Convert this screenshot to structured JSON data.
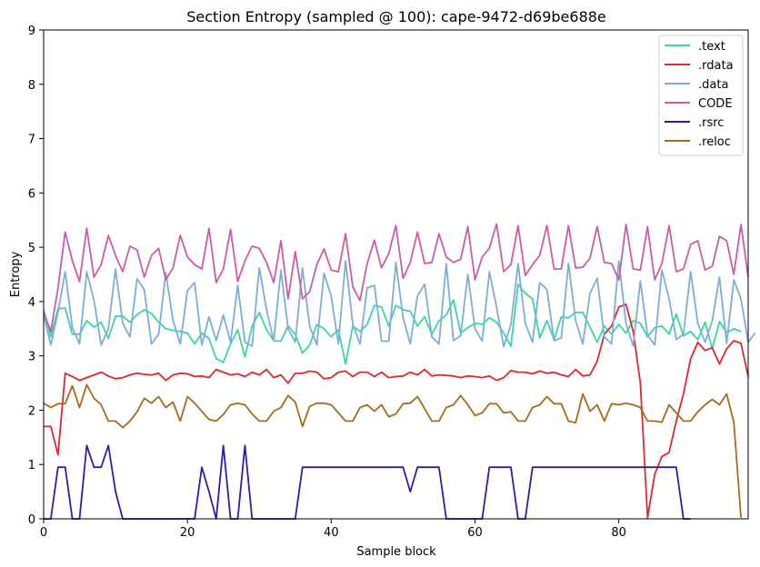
{
  "chart_data": {
    "type": "line",
    "title": "Section Entropy (sampled @ 100): cape-9472-d69be688e",
    "xlabel": "Sample block",
    "ylabel": "Entropy",
    "xlim": [
      0,
      98
    ],
    "ylim": [
      0,
      9
    ],
    "xticks": [
      0,
      20,
      40,
      60,
      80
    ],
    "yticks": [
      0,
      1,
      2,
      3,
      4,
      5,
      6,
      7,
      8,
      9
    ],
    "grid": false,
    "legend_position": "top-right",
    "series": [
      {
        "name": ".text",
        "color": "#3ad6a0",
        "values": [
          3.85,
          3.35,
          3.87,
          3.88,
          3.4,
          3.4,
          3.65,
          3.53,
          3.62,
          3.32,
          3.73,
          3.73,
          3.62,
          3.76,
          3.85,
          3.78,
          3.62,
          3.5,
          3.47,
          3.45,
          3.42,
          3.22,
          3.42,
          3.32,
          2.95,
          2.88,
          3.22,
          3.48,
          2.98,
          3.55,
          3.8,
          3.48,
          3.28,
          3.27,
          3.55,
          3.4,
          3.05,
          3.2,
          3.58,
          3.5,
          3.35,
          3.48,
          2.85,
          3.55,
          3.45,
          3.58,
          3.93,
          3.9,
          3.55,
          3.93,
          3.85,
          3.82,
          3.55,
          3.72,
          3.4,
          3.65,
          3.75,
          4.03,
          3.42,
          3.52,
          3.6,
          3.58,
          3.7,
          3.62,
          3.42,
          3.18,
          4.32,
          4.15,
          4.05,
          3.33,
          3.65,
          3.3,
          3.72,
          3.7,
          3.8,
          3.8,
          3.53,
          3.25,
          3.55,
          3.4,
          3.58,
          3.42,
          3.65,
          3.6,
          3.35,
          3.52,
          3.55,
          3.4,
          3.77,
          3.37,
          3.45,
          3.3,
          3.62,
          3.13,
          3.63,
          3.43,
          3.5,
          3.45
        ]
      },
      {
        "name": ".rdata",
        "color": "#e0282c",
        "values": [
          1.7,
          1.7,
          1.18,
          2.68,
          2.62,
          2.55,
          2.6,
          2.65,
          2.7,
          2.63,
          2.58,
          2.6,
          2.65,
          2.68,
          2.66,
          2.65,
          2.68,
          2.55,
          2.65,
          2.68,
          2.67,
          2.62,
          2.63,
          2.6,
          2.75,
          2.7,
          2.65,
          2.67,
          2.62,
          2.7,
          2.65,
          2.75,
          2.6,
          2.65,
          2.5,
          2.68,
          2.68,
          2.72,
          2.7,
          2.58,
          2.6,
          2.7,
          2.72,
          2.62,
          2.7,
          2.7,
          2.62,
          2.7,
          2.6,
          2.62,
          2.63,
          2.7,
          2.65,
          2.75,
          2.63,
          2.65,
          2.64,
          2.63,
          2.6,
          2.63,
          2.62,
          2.6,
          2.63,
          2.55,
          2.6,
          2.73,
          2.7,
          2.7,
          2.67,
          2.72,
          2.68,
          2.7,
          2.65,
          2.62,
          2.75,
          2.63,
          2.65,
          2.9,
          3.4,
          3.55,
          3.9,
          3.95,
          3.45,
          2.5,
          0.02,
          0.82,
          1.15,
          1.22,
          1.8,
          2.3,
          2.95,
          3.25,
          3.1,
          3.15,
          2.85,
          3.13,
          3.28,
          3.23,
          2.62
        ]
      },
      {
        "name": ".data",
        "color": "#7eaed8",
        "values": [
          3.75,
          3.2,
          3.8,
          4.55,
          3.52,
          3.22,
          4.55,
          4.02,
          3.2,
          3.5,
          4.6,
          3.6,
          3.35,
          4.42,
          4.22,
          3.22,
          3.4,
          4.53,
          3.65,
          3.22,
          4.2,
          4.35,
          3.2,
          3.72,
          3.28,
          3.75,
          3.25,
          4.3,
          3.25,
          3.18,
          4.62,
          3.85,
          3.28,
          4.58,
          3.5,
          3.25,
          4.62,
          3.55,
          3.2,
          4.52,
          4.1,
          3.22,
          4.75,
          3.58,
          3.22,
          4.25,
          4.3,
          3.27,
          3.27,
          4.72,
          3.7,
          3.22,
          4.1,
          4.32,
          3.35,
          3.22,
          4.7,
          3.28,
          3.37,
          4.5,
          3.5,
          3.27,
          4.55,
          3.9,
          3.17,
          3.58,
          4.7,
          3.6,
          3.25,
          4.35,
          4.22,
          3.28,
          3.33,
          4.7,
          3.65,
          3.22,
          4.15,
          4.43,
          3.35,
          3.22,
          4.75,
          3.6,
          3.18,
          4.38,
          3.38,
          3.2,
          4.58,
          4.05,
          3.3,
          3.4,
          4.55,
          3.6,
          3.25,
          3.65,
          4.45,
          3.23,
          4.4,
          4.05,
          3.25,
          3.43
        ]
      },
      {
        "name": "CODE",
        "color": "#cc5ca8",
        "values": [
          3.8,
          3.45,
          4.25,
          5.28,
          4.75,
          4.37,
          5.35,
          4.45,
          4.68,
          5.22,
          4.85,
          4.55,
          5.02,
          4.95,
          4.45,
          4.85,
          4.98,
          4.4,
          4.62,
          5.22,
          4.82,
          4.68,
          4.6,
          5.35,
          4.35,
          4.6,
          5.33,
          4.37,
          4.75,
          5.02,
          4.98,
          4.72,
          4.35,
          5.12,
          4.05,
          4.92,
          4.05,
          4.18,
          4.68,
          4.97,
          4.58,
          4.55,
          5.25,
          4.27,
          4.02,
          4.7,
          5.13,
          4.62,
          4.88,
          5.4,
          4.43,
          4.72,
          5.28,
          4.7,
          4.72,
          5.25,
          4.82,
          4.72,
          4.78,
          5.38,
          4.4,
          4.82,
          4.98,
          5.43,
          4.55,
          4.68,
          5.4,
          4.48,
          4.68,
          4.85,
          5.4,
          4.6,
          4.6,
          5.4,
          4.62,
          4.63,
          4.8,
          5.38,
          4.72,
          4.7,
          4.4,
          5.42,
          4.6,
          4.58,
          5.38,
          4.4,
          4.7,
          5.4,
          4.55,
          4.6,
          5.05,
          5.12,
          4.58,
          4.65,
          5.2,
          5.12,
          4.5,
          5.42,
          4.45
        ]
      },
      {
        "name": ".rsrc",
        "color": "#2a1faa",
        "values": [
          0,
          0,
          0.95,
          0.95,
          0,
          0,
          1.35,
          0.95,
          0.95,
          1.35,
          0.5,
          0,
          0,
          0,
          0,
          0,
          0,
          0,
          0,
          0,
          0,
          0,
          0.95,
          0.5,
          0,
          1.35,
          0,
          0,
          1.35,
          0,
          0,
          0,
          0,
          0,
          0,
          0,
          0.95,
          0.95,
          0.95,
          0.95,
          0.95,
          0.95,
          0.95,
          0.95,
          0.95,
          0.95,
          0.95,
          0.95,
          0.95,
          0.95,
          0.95,
          0.5,
          0.95,
          0.95,
          0.95,
          0.95,
          0,
          0,
          0,
          0,
          0,
          0,
          0.95,
          0.95,
          0.95,
          0.95,
          0,
          0,
          0.95,
          0.95,
          0.95,
          0.95,
          0.95,
          0.95,
          0.95,
          0.95,
          0.95,
          0.95,
          0.95,
          0.95,
          0.95,
          0.95,
          0.95,
          0.95,
          0.95,
          0.95,
          0.95,
          0.95,
          0.95,
          0,
          0
        ]
      },
      {
        "name": ".reloc",
        "color": "#a86b1a",
        "values": [
          2.13,
          2.05,
          2.12,
          2.12,
          2.45,
          2.05,
          2.47,
          2.22,
          2.1,
          1.8,
          1.8,
          1.68,
          1.8,
          1.97,
          2.22,
          2.13,
          2.25,
          2.05,
          2.15,
          1.8,
          2.25,
          2.13,
          1.98,
          1.83,
          1.8,
          1.92,
          2.1,
          2.13,
          2.1,
          1.93,
          1.8,
          1.8,
          1.98,
          2.05,
          2.27,
          2.15,
          1.7,
          2.07,
          2.13,
          2.13,
          2.1,
          1.95,
          1.8,
          1.8,
          2.05,
          2.1,
          1.98,
          2.1,
          1.88,
          1.93,
          2.12,
          2.13,
          2.25,
          2.03,
          1.8,
          1.8,
          2.05,
          2.1,
          2.27,
          2.1,
          1.9,
          1.95,
          2.12,
          2.12,
          1.95,
          1.97,
          1.8,
          1.8,
          2.05,
          2.1,
          2.25,
          2.12,
          2.12,
          1.8,
          1.77,
          2.3,
          1.98,
          2.1,
          1.8,
          2.12,
          2.1,
          2.13,
          2.1,
          2.05,
          1.8,
          1.8,
          1.78,
          2.1,
          1.95,
          1.8,
          1.8,
          1.97,
          2.1,
          2.2,
          2.1,
          2.3,
          1.78,
          0.02
        ]
      }
    ]
  }
}
